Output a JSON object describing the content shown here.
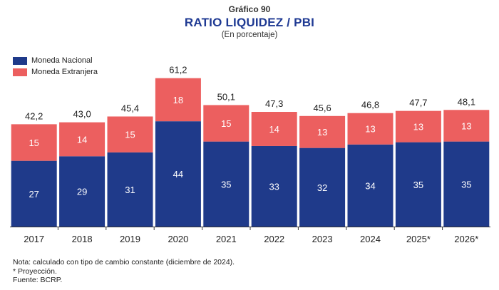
{
  "header": {
    "kicker": "Gráfico 90",
    "title": "RATIO LIQUIDEZ / PBI",
    "subtitle": "(En porcentaje)"
  },
  "notes": {
    "line1": "Nota: calculado con tipo de cambio constante (diciembre de 2024).",
    "line2": "* Proyección.",
    "line3": "Fuente: BCRP."
  },
  "chart_data": {
    "type": "bar",
    "stacked": true,
    "title": "RATIO LIQUIDEZ / PBI",
    "subtitle": "(En porcentaje)",
    "categories": [
      "2017",
      "2018",
      "2019",
      "2020",
      "2021",
      "2022",
      "2023",
      "2024",
      "2025*",
      "2026*"
    ],
    "series": [
      {
        "name": "Moneda Nacional",
        "color": "#1f3a8a",
        "values": [
          27,
          29,
          31,
          44,
          35,
          33,
          32,
          34,
          35,
          35
        ]
      },
      {
        "name": "Moneda Extranjera",
        "color": "#ec5f5f",
        "values": [
          15,
          14,
          15,
          18,
          15,
          14,
          13,
          13,
          13,
          13
        ]
      }
    ],
    "totals": [
      "42,2",
      "43,0",
      "45,4",
      "61,2",
      "50,1",
      "47,3",
      "45,6",
      "46,8",
      "47,7",
      "48,1"
    ],
    "total_values": [
      42.2,
      43.0,
      45.4,
      61.2,
      50.1,
      47.3,
      45.6,
      46.8,
      47.7,
      48.1
    ],
    "xlabel": "",
    "ylabel": "",
    "ylim": [
      0,
      65
    ],
    "grid": false,
    "legend_position": "top-left"
  }
}
